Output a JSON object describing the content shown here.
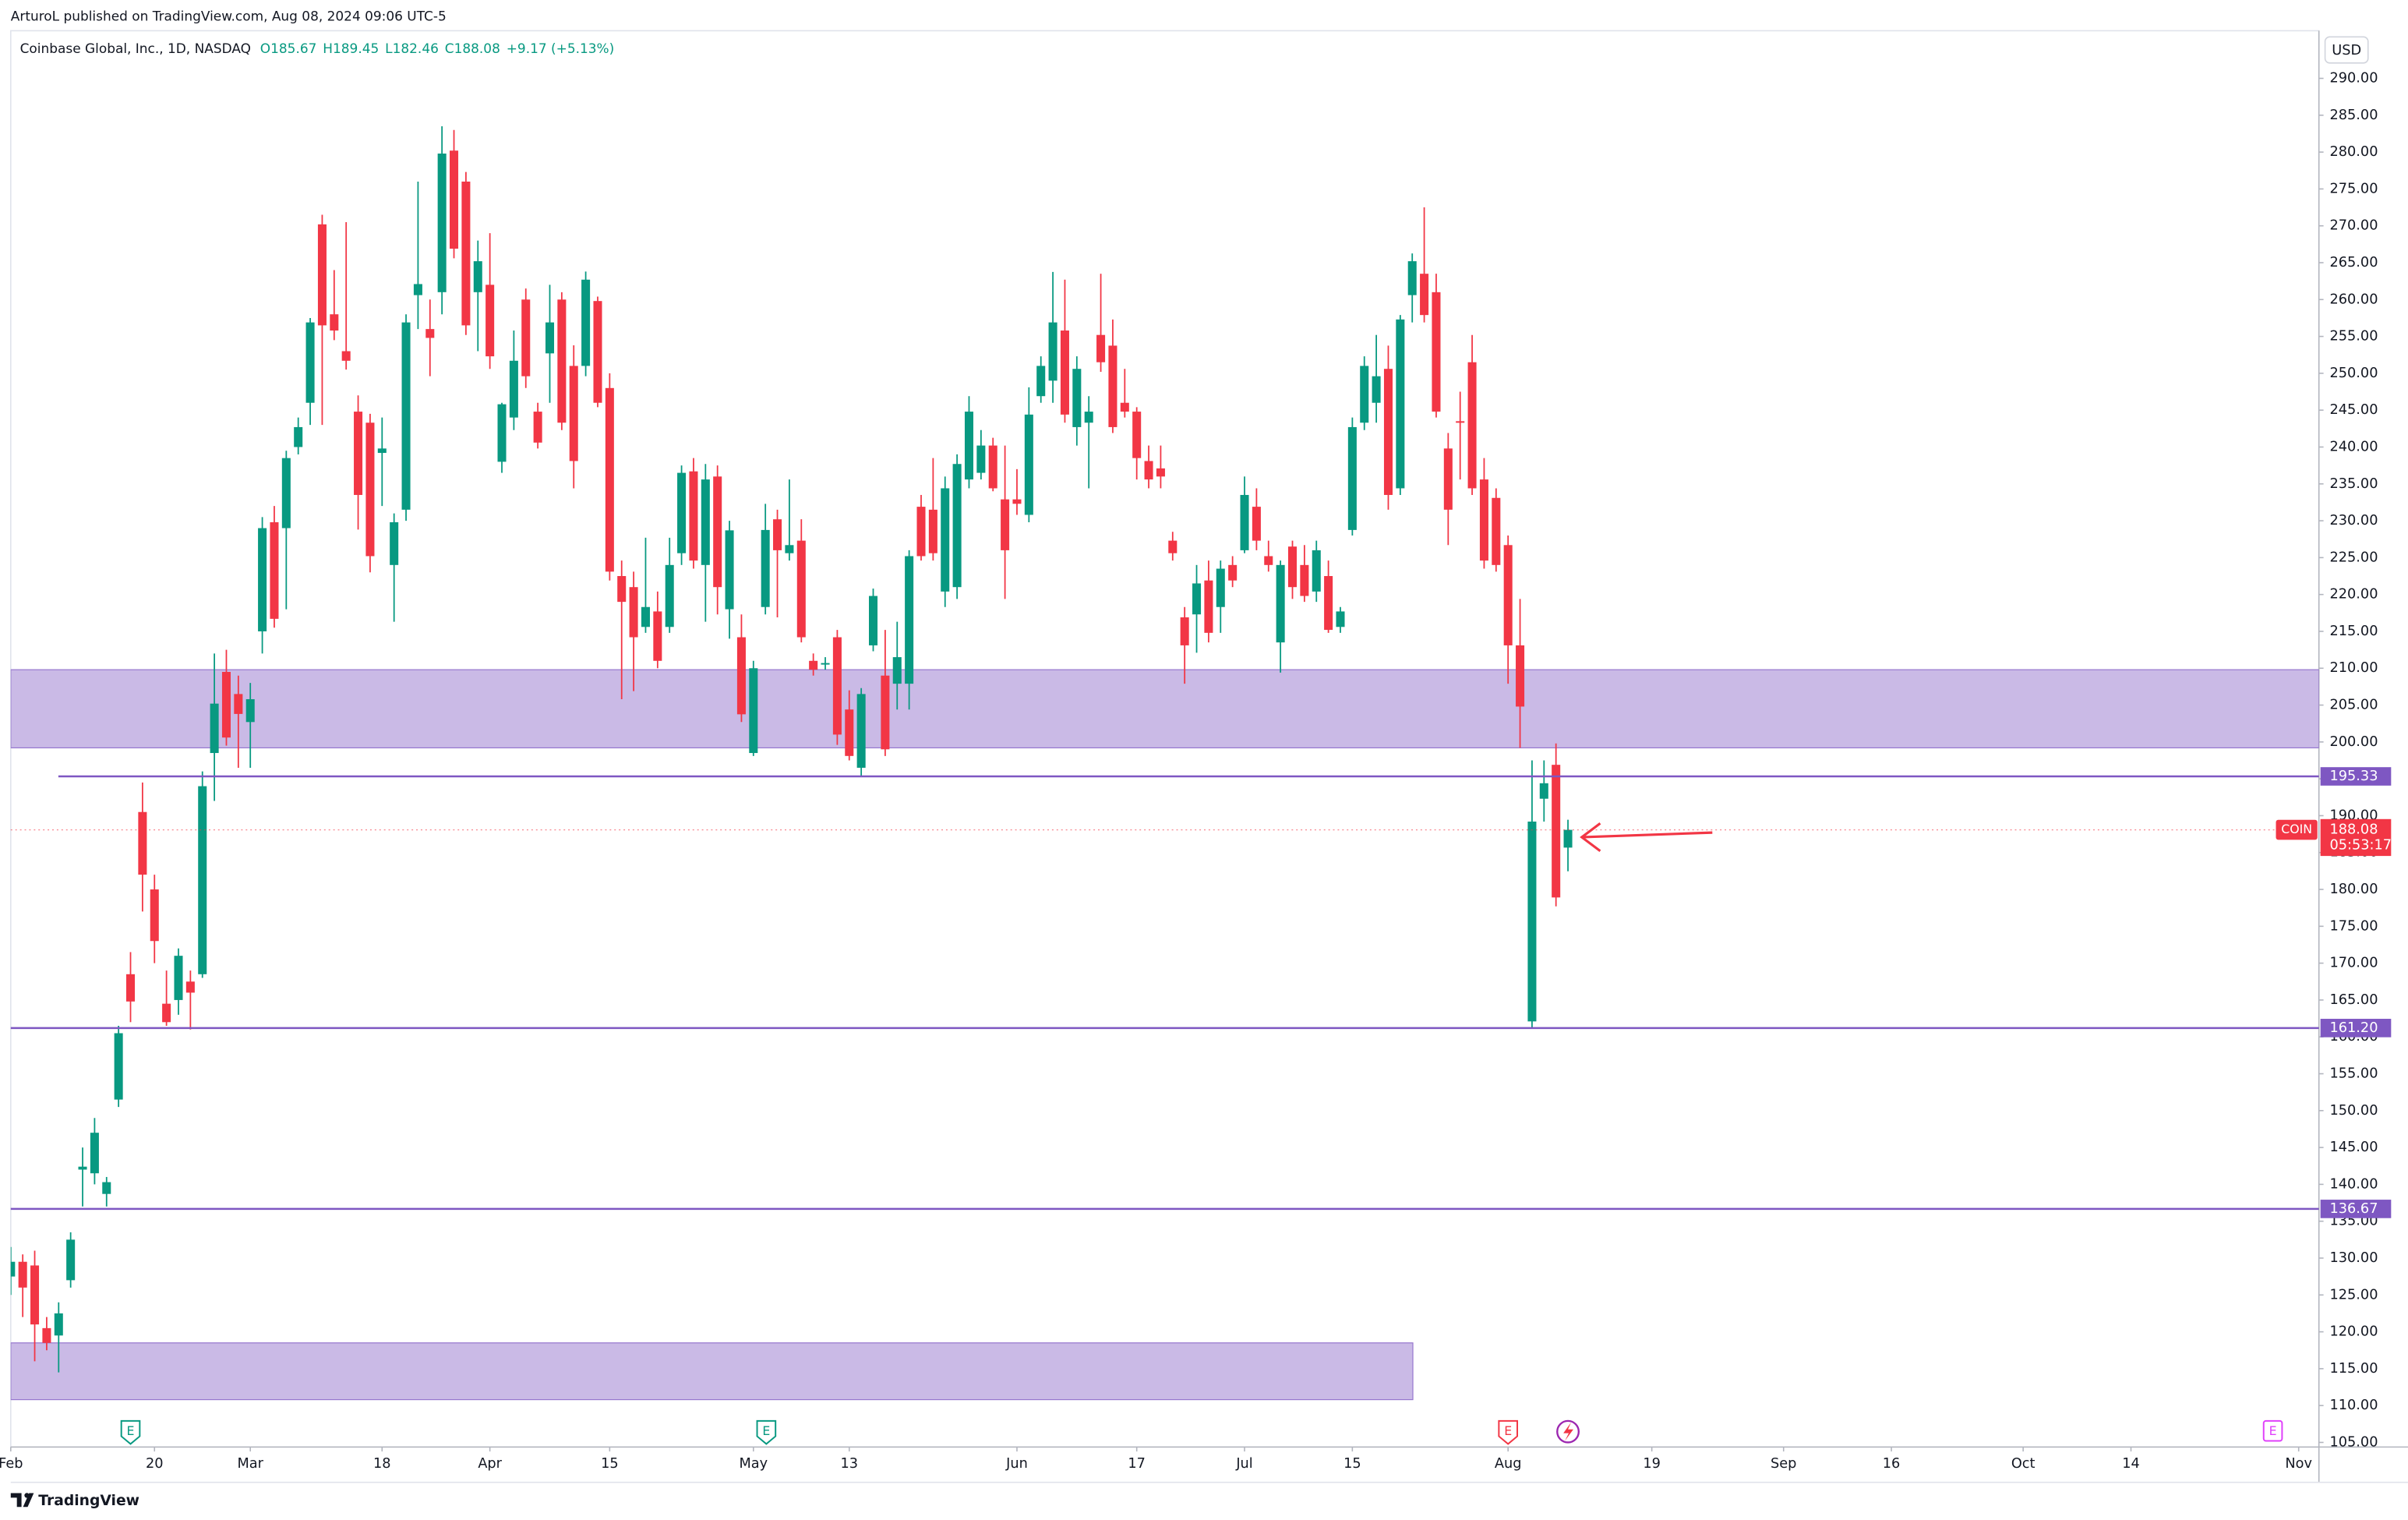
{
  "header": {
    "published": "ArturoL published on TradingView.com, Aug 08, 2024 09:06 UTC-5"
  },
  "footer": {
    "brand": "TradingView"
  },
  "legend": {
    "title": "Coinbase Global, Inc., 1D, NASDAQ",
    "ohlc": [
      "O185.67",
      "H189.45",
      "L182.46",
      "C188.08"
    ],
    "change": "+9.17 (+5.13%)"
  },
  "events": [
    {
      "label": "E"
    },
    {
      "label": "E"
    },
    {
      "label": "E"
    },
    {
      "label": "E"
    }
  ],
  "chart_data": {
    "type": "candlestick",
    "symbol": "COIN",
    "currency": "USD",
    "countdown": "05:53:17",
    "up_color": "#089981",
    "down_color": "#f23645",
    "x": [
      "02-01",
      "02-02",
      "02-05",
      "02-06",
      "02-07",
      "02-08",
      "02-09",
      "02-12",
      "02-13",
      "02-14",
      "02-15",
      "02-16",
      "02-20",
      "02-21",
      "02-22",
      "02-23",
      "02-26",
      "02-27",
      "02-28",
      "02-29",
      "03-01",
      "03-04",
      "03-05",
      "03-06",
      "03-07",
      "03-08",
      "03-11",
      "03-12",
      "03-13",
      "03-14",
      "03-15",
      "03-18",
      "03-19",
      "03-20",
      "03-21",
      "03-22",
      "03-25",
      "03-26",
      "03-27",
      "03-28",
      "04-01",
      "04-02",
      "04-03",
      "04-04",
      "04-05",
      "04-08",
      "04-09",
      "04-10",
      "04-11",
      "04-12",
      "04-15",
      "04-16",
      "04-17",
      "04-18",
      "04-19",
      "04-22",
      "04-23",
      "04-24",
      "04-25",
      "04-26",
      "04-29",
      "04-30",
      "05-01",
      "05-02",
      "05-03",
      "05-06",
      "05-07",
      "05-08",
      "05-09",
      "05-10",
      "05-13",
      "05-14",
      "05-15",
      "05-16",
      "05-17",
      "05-20",
      "05-21",
      "05-22",
      "05-23",
      "05-24",
      "05-28",
      "05-29",
      "05-30",
      "05-31",
      "06-03",
      "06-04",
      "06-05",
      "06-06",
      "06-07",
      "06-10",
      "06-11",
      "06-12",
      "06-13",
      "06-14",
      "06-17",
      "06-18",
      "06-20",
      "06-21",
      "06-24",
      "06-25",
      "06-26",
      "06-27",
      "06-28",
      "07-01",
      "07-02",
      "07-03",
      "07-05",
      "07-08",
      "07-09",
      "07-10",
      "07-11",
      "07-12",
      "07-15",
      "07-16",
      "07-17",
      "07-18",
      "07-19",
      "07-22",
      "07-23",
      "07-24",
      "07-25",
      "07-26",
      "07-29",
      "07-30",
      "07-31",
      "08-01",
      "08-02",
      "08-05",
      "08-06",
      "08-07",
      "08-08"
    ],
    "open": [
      127.5,
      129.5,
      129,
      120.5,
      119.5,
      127,
      142,
      141.5,
      138.7,
      151.5,
      168.5,
      190.5,
      180,
      164.5,
      165,
      167.5,
      168.5,
      198.5,
      209.5,
      206.5,
      202.7,
      215,
      229.8,
      229,
      240,
      246,
      270.2,
      258,
      253,
      244.8,
      243.3,
      239.2,
      224,
      231.5,
      260.6,
      256,
      261,
      280.2,
      276,
      261,
      262,
      238,
      244,
      260,
      244.8,
      252.7,
      260,
      251,
      251,
      259.8,
      248,
      222.5,
      221,
      215.6,
      217.7,
      215.6,
      225.6,
      236.7,
      224,
      236,
      218,
      214.2,
      198.5,
      218.3,
      230.2,
      225.6,
      227.3,
      211,
      210.5,
      214.2,
      204.4,
      196.5,
      213.1,
      209,
      207.9,
      207.9,
      231.9,
      231.5,
      220.4,
      221,
      235.6,
      236.5,
      240.2,
      232.9,
      232.9,
      230.8,
      246.9,
      249,
      255.8,
      242.7,
      243.3,
      255.2,
      253.75,
      246,
      244.8,
      238.1,
      237.1,
      227.3,
      216.9,
      217.3,
      221.9,
      218.3,
      224,
      226,
      231.9,
      225.2,
      213.5,
      226.5,
      224,
      220.4,
      222.5,
      215.6,
      228.75,
      243.3,
      246,
      250.6,
      234.4,
      260.6,
      263.5,
      261,
      239.8,
      243.5,
      251.5,
      235.6,
      233.1,
      226.7,
      213.1,
      162.1,
      192.3,
      196.9,
      185.67
    ],
    "high": [
      131.5,
      130.5,
      131,
      122,
      124,
      133.5,
      145,
      149,
      141,
      161.5,
      171.5,
      194.5,
      182,
      169,
      172,
      169,
      196,
      212,
      212.5,
      209,
      208,
      230.5,
      232,
      239.5,
      244,
      257.5,
      271.5,
      264,
      270.5,
      247,
      244.5,
      244,
      231,
      258,
      276,
      260,
      283.5,
      283,
      277.3,
      268,
      269,
      246,
      255.8,
      261.5,
      246,
      262,
      261,
      253.8,
      263.8,
      260.4,
      250,
      224.6,
      223.1,
      227.7,
      220.4,
      227.7,
      237.5,
      238.5,
      237.7,
      237.5,
      230,
      217.3,
      211,
      232.3,
      231.5,
      235.6,
      230.2,
      212,
      211.5,
      215.2,
      207,
      207.3,
      220.8,
      215.2,
      216.3,
      226,
      233.5,
      238.5,
      236,
      239,
      246.9,
      242.3,
      241.25,
      240.2,
      237,
      248.1,
      252.3,
      263.75,
      262.7,
      252.3,
      246.9,
      263.5,
      257.3,
      250.6,
      245.4,
      240.2,
      240.2,
      228.5,
      218.3,
      224,
      224.6,
      224.6,
      225.2,
      236,
      234.4,
      227.3,
      224.6,
      227.3,
      226.7,
      227.3,
      224.6,
      218.3,
      244,
      252.3,
      255.2,
      253.75,
      257.9,
      266.25,
      272.5,
      263.5,
      241.9,
      247.5,
      255.2,
      238.5,
      234.4,
      228,
      219.4,
      197.5,
      197.5,
      199.8,
      189.45
    ],
    "low": [
      125,
      122,
      116,
      117.5,
      114.5,
      126,
      137,
      140,
      137,
      150.5,
      162,
      177,
      170,
      161.5,
      163,
      161,
      168,
      192,
      199.5,
      196.5,
      196.5,
      212,
      215.5,
      218,
      239,
      243,
      243,
      254.5,
      250.5,
      228.8,
      223,
      232,
      216.3,
      230,
      256,
      249.6,
      258,
      265.6,
      255.2,
      253,
      250.6,
      236.5,
      242.3,
      248,
      239.8,
      246,
      242.3,
      234.4,
      249.6,
      245.4,
      221.9,
      205.8,
      206.9,
      214.8,
      210,
      214.8,
      224,
      223.5,
      216.3,
      217.3,
      214,
      202.7,
      198.1,
      217.3,
      216.9,
      224.6,
      213.5,
      209,
      209.8,
      199.6,
      197.5,
      195.4,
      212.3,
      198.1,
      204.4,
      204.4,
      224.6,
      224.6,
      218.3,
      219.4,
      234.4,
      235.6,
      234,
      219.4,
      230.8,
      229.8,
      246,
      246,
      243.3,
      240.2,
      234.4,
      250.2,
      241.9,
      244,
      235.6,
      234.4,
      234.4,
      224.6,
      207.9,
      212.1,
      213.5,
      214.8,
      221,
      225.6,
      226,
      223.1,
      209.4,
      219.4,
      219,
      219,
      214.8,
      214.8,
      228,
      242.3,
      243.3,
      231.5,
      233.5,
      256.9,
      256.9,
      244,
      226.7,
      235.6,
      233.5,
      223.5,
      223.1,
      207.9,
      199.2,
      161.2,
      189.2,
      177.7,
      182.46
    ],
    "close": [
      129.5,
      126,
      121,
      118.5,
      122.5,
      132.5,
      142.4,
      147,
      140.3,
      160.5,
      164.8,
      182,
      173,
      162,
      171,
      166,
      194,
      205.2,
      200.6,
      203.8,
      205.8,
      229,
      216.7,
      238.5,
      242.7,
      256.9,
      256.5,
      255.8,
      251.7,
      233.5,
      225.2,
      239.8,
      229.8,
      256.9,
      262.1,
      254.8,
      279.8,
      266.9,
      256.5,
      265.2,
      252.3,
      245.8,
      251.7,
      249.6,
      240.6,
      256.9,
      243.3,
      238.1,
      262.7,
      246,
      223.1,
      219,
      214.2,
      218.3,
      211,
      224,
      236.5,
      224.6,
      235.6,
      221,
      228.7,
      203.75,
      210,
      228.75,
      226,
      226.7,
      214.2,
      209.8,
      210.7,
      201,
      198.1,
      206.5,
      219.8,
      199,
      211.5,
      225.2,
      225.2,
      225.6,
      234.4,
      237.7,
      244.8,
      240.2,
      234.4,
      226,
      232.3,
      244.4,
      251,
      256.9,
      244.4,
      250.6,
      244.8,
      251.5,
      242.7,
      244.8,
      238.5,
      235.6,
      236,
      225.6,
      213.1,
      221.5,
      214.8,
      223.5,
      221.9,
      233.5,
      227.3,
      224,
      224,
      221,
      219.8,
      226,
      215.2,
      217.7,
      242.7,
      251,
      249.6,
      233.5,
      257.3,
      265.2,
      257.9,
      244.8,
      231.5,
      243.3,
      234.4,
      224.6,
      224,
      213.1,
      204.8,
      189.2,
      194.4,
      178.91,
      188.08
    ],
    "ylim": [
      104.5,
      296.5
    ],
    "yticks": [
      {
        "value": 105,
        "label": "105.00"
      },
      {
        "value": 110,
        "label": "110.00"
      },
      {
        "value": 115,
        "label": "115.00"
      },
      {
        "value": 120,
        "label": "120.00"
      },
      {
        "value": 125,
        "label": "125.00"
      },
      {
        "value": 130,
        "label": "130.00"
      },
      {
        "value": 135,
        "label": "135.00"
      },
      {
        "value": 140,
        "label": "140.00"
      },
      {
        "value": 145,
        "label": "145.00"
      },
      {
        "value": 150,
        "label": "150.00"
      },
      {
        "value": 155,
        "label": "155.00"
      },
      {
        "value": 160,
        "label": "160.00"
      },
      {
        "value": 165,
        "label": "165.00"
      },
      {
        "value": 170,
        "label": "170.00"
      },
      {
        "value": 175,
        "label": "175.00"
      },
      {
        "value": 180,
        "label": "180.00"
      },
      {
        "value": 185,
        "label": "185.00"
      },
      {
        "value": 190,
        "label": "190.00"
      },
      {
        "value": 195,
        "label": "195.00"
      },
      {
        "value": 200,
        "label": "200.00"
      },
      {
        "value": 205,
        "label": "205.00"
      },
      {
        "value": 210,
        "label": "210.00"
      },
      {
        "value": 215,
        "label": "215.00"
      },
      {
        "value": 220,
        "label": "220.00"
      },
      {
        "value": 225,
        "label": "225.00"
      },
      {
        "value": 230,
        "label": "230.00"
      },
      {
        "value": 235,
        "label": "235.00"
      },
      {
        "value": 240,
        "label": "240.00"
      },
      {
        "value": 245,
        "label": "245.00"
      },
      {
        "value": 250,
        "label": "250.00"
      },
      {
        "value": 255,
        "label": "255.00"
      },
      {
        "value": 260,
        "label": "260.00"
      },
      {
        "value": 265,
        "label": "265.00"
      },
      {
        "value": 270,
        "label": "270.00"
      },
      {
        "value": 275,
        "label": "275.00"
      },
      {
        "value": 280,
        "label": "280.00"
      },
      {
        "value": 285,
        "label": "285.00"
      },
      {
        "value": 290,
        "label": "290.00"
      }
    ],
    "xticks": [
      {
        "value": "02-01",
        "label": "Feb"
      },
      {
        "value": "02-20",
        "label": "20"
      },
      {
        "value": "03-01",
        "label": "Mar"
      },
      {
        "value": "03-18",
        "label": "18"
      },
      {
        "value": "04-01",
        "label": "Apr"
      },
      {
        "value": "04-15",
        "label": "15"
      },
      {
        "value": "05-01",
        "label": "May"
      },
      {
        "value": "05-13",
        "label": "13"
      },
      {
        "value": "06-03",
        "label": "Jun"
      },
      {
        "value": "06-17",
        "label": "17"
      },
      {
        "value": "07-01",
        "label": "Jul"
      },
      {
        "value": "07-15",
        "label": "15"
      },
      {
        "value": "08-01",
        "label": "Aug"
      },
      {
        "value": "08-19",
        "label": "19"
      },
      {
        "value": "09-03",
        "label": "Sep"
      },
      {
        "value": "09-16",
        "label": "16"
      },
      {
        "value": "10-01",
        "label": "Oct"
      },
      {
        "value": "10-14",
        "label": "14"
      },
      {
        "value": "11-01",
        "label": "Nov"
      }
    ],
    "hlines": [
      {
        "value": 195.33,
        "label": "195.33"
      },
      {
        "value": 161.2,
        "label": "161.20"
      },
      {
        "value": 136.67,
        "label": "136.67"
      }
    ],
    "line_color": "#7e57c2",
    "zones": [
      {
        "top": 209.8,
        "bottom": 199.2
      },
      {
        "top": 118.5,
        "bottom": 110.8
      }
    ],
    "zone_color": "#b39ddb"
  }
}
